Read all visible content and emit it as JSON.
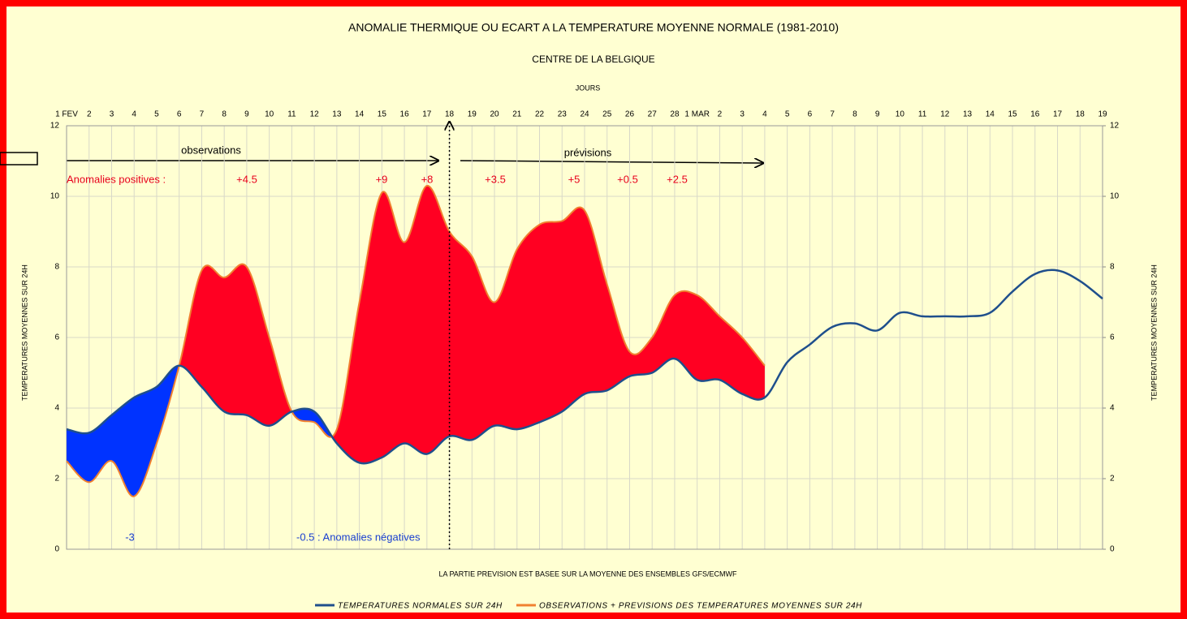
{
  "chart_data": {
    "type": "line",
    "title": "ANOMALIE THERMIQUE OU ECART A LA TEMPERATURE MOYENNE NORMALE (1981-2010)",
    "subtitle": "CENTRE DE LA BELGIQUE",
    "x_label": "JOURS",
    "y_label": "TEMPERATURES MOYENNES SUR 24H",
    "y2_label": "TEMPERATURES MOYENNES SUR 24H",
    "note": "LA PARTIE PREVISION EST BASEE SUR LA MOYENNE DES ENSEMBLES GFS/ECMWF",
    "categories": [
      "1 FEV",
      "2",
      "3",
      "4",
      "5",
      "6",
      "7",
      "8",
      "9",
      "10",
      "11",
      "12",
      "13",
      "14",
      "15",
      "16",
      "17",
      "18",
      "19",
      "20",
      "21",
      "22",
      "23",
      "24",
      "25",
      "26",
      "27",
      "28",
      "1 MAR",
      "2",
      "3",
      "4",
      "5",
      "6",
      "7",
      "8",
      "9",
      "10",
      "11",
      "12",
      "13",
      "14",
      "15",
      "16",
      "17",
      "18",
      "19"
    ],
    "series": [
      {
        "name": "TEMPERATURES NORMALES SUR 24H",
        "color": "#1f4f8c",
        "values": [
          3.4,
          3.3,
          3.8,
          4.3,
          4.6,
          5.2,
          4.6,
          3.9,
          3.8,
          3.5,
          3.9,
          3.9,
          3.0,
          2.45,
          2.6,
          3.0,
          2.7,
          3.2,
          3.1,
          3.5,
          3.4,
          3.6,
          3.9,
          4.4,
          4.5,
          4.9,
          5.0,
          5.4,
          4.8,
          4.8,
          4.4,
          4.3,
          5.3,
          5.8,
          6.3,
          6.4,
          6.2,
          6.7,
          6.6,
          6.6,
          6.6,
          6.7,
          7.3,
          7.8,
          7.9,
          7.6,
          7.1
        ]
      },
      {
        "name": "OBSERVATIONS + PREVISIONS DES TEMPERATURES MOYENNES SUR 24H",
        "color": "#f08030",
        "values": [
          2.5,
          1.9,
          2.5,
          1.5,
          3.0,
          5.2,
          7.9,
          7.7,
          8.0,
          6.0,
          3.9,
          3.6,
          3.4,
          7.0,
          10.1,
          8.7,
          10.3,
          9.0,
          8.3,
          7.0,
          8.5,
          9.2,
          9.3,
          9.6,
          7.5,
          5.6,
          6.0,
          7.2,
          7.2,
          6.6,
          6.0,
          5.2,
          null,
          null,
          null,
          null,
          null,
          null,
          null,
          null,
          null,
          null,
          null,
          null,
          null,
          null,
          null
        ]
      }
    ],
    "positive_color": "#ff0022",
    "negative_color": "#0033ff",
    "ylim": [
      0,
      12
    ],
    "yticks": [
      0,
      2,
      4,
      6,
      8,
      10,
      12
    ],
    "y2lim": [
      0,
      12
    ],
    "y2ticks": [
      0,
      2,
      4,
      6,
      8,
      10,
      12
    ],
    "grid": true,
    "annotations": [
      "observations",
      "prévisions",
      "Anomalies positives :",
      "+4.5",
      "+9",
      "+8",
      "+3.5",
      "+5",
      "+0.5",
      "+2.5",
      "-3",
      "-0.5 :  Anomalies négatives"
    ]
  }
}
